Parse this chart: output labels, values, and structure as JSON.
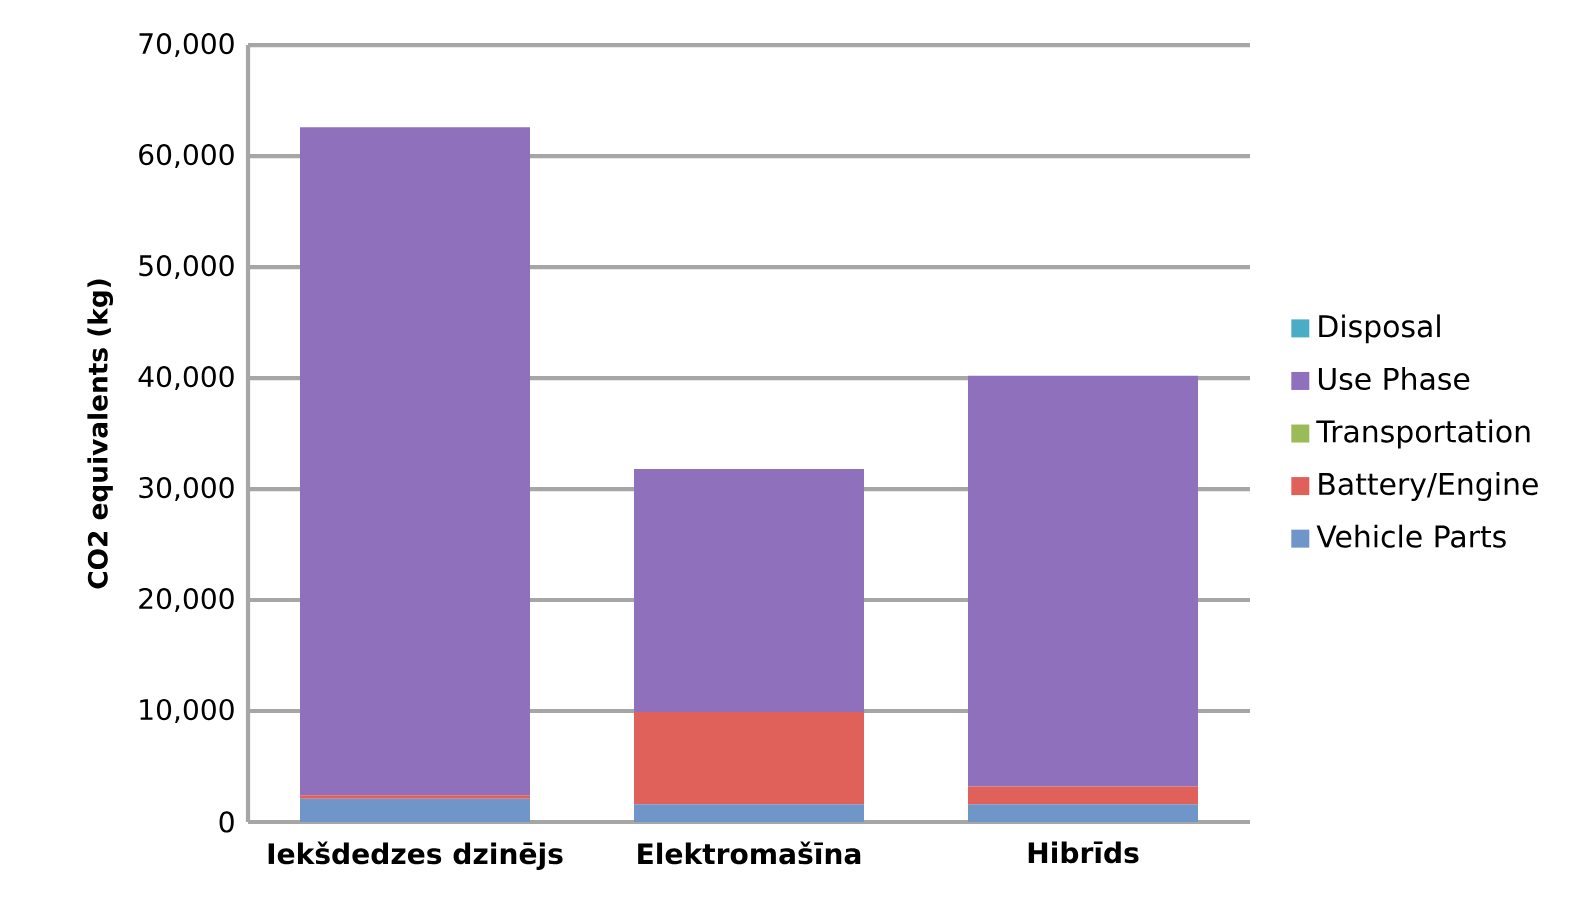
{
  "chart_data": {
    "type": "bar",
    "stacked": true,
    "ylabel": "CO2 equivalents (kg)",
    "categories": [
      "Iekšdedzes dzinējs",
      "Elektromašīna",
      "Hibrīds"
    ],
    "series": [
      {
        "name": "Vehicle Parts",
        "color": "#6f95c9",
        "values": [
          2100,
          1600,
          1600
        ]
      },
      {
        "name": "Battery/Engine",
        "color": "#e0605a",
        "values": [
          300,
          8300,
          1600
        ]
      },
      {
        "name": "Transportation",
        "color": "#9bbb59",
        "values": [
          0,
          0,
          0
        ]
      },
      {
        "name": "Use Phase",
        "color": "#8f70bd",
        "values": [
          60200,
          21900,
          37000
        ]
      },
      {
        "name": "Disposal",
        "color": "#4bacc6",
        "values": [
          0,
          0,
          0
        ]
      }
    ],
    "ylim": [
      0,
      70000
    ],
    "yticks": [
      {
        "value": 0,
        "label": "0"
      },
      {
        "value": 10000,
        "label": "10,000"
      },
      {
        "value": 20000,
        "label": "20,000"
      },
      {
        "value": 30000,
        "label": "30,000"
      },
      {
        "value": 40000,
        "label": "40,000"
      },
      {
        "value": 50000,
        "label": "50,000"
      },
      {
        "value": 60000,
        "label": "60,000"
      },
      {
        "value": 70000,
        "label": "70,000"
      }
    ],
    "grid": "y",
    "legend": "right"
  }
}
